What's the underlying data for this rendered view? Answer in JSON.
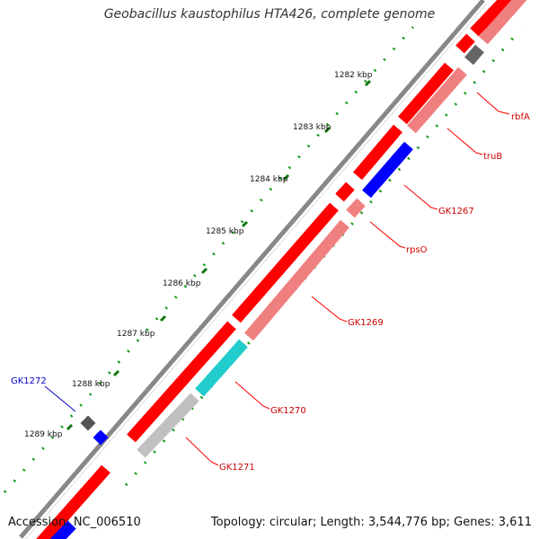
{
  "header": {
    "title": "Geobacillus kaustophilus HTA426, complete genome"
  },
  "footer": {
    "accession": "Accession: NC_006510",
    "stats": "Topology: circular; Length: 3,544,776 bp; Genes: 3,611"
  },
  "ticks": [
    "1282 kbp",
    "1283 kbp",
    "1284 kbp",
    "1285 kbp",
    "1286 kbp",
    "1287 kbp",
    "1288 kbp",
    "1289 kbp"
  ],
  "genes": [
    {
      "name": "rbfA",
      "color": "#cc0000"
    },
    {
      "name": "truB",
      "color": "#cc0000"
    },
    {
      "name": "GK1267",
      "color": "#cc0000"
    },
    {
      "name": "rpsO",
      "color": "#cc0000"
    },
    {
      "name": "GK1269",
      "color": "#cc0000"
    },
    {
      "name": "GK1270",
      "color": "#cc0000"
    },
    {
      "name": "GK1271",
      "color": "#cc0000"
    },
    {
      "name": "GK1272",
      "color": "#0000cc"
    }
  ],
  "colors": {
    "cds": "#ff0000",
    "cds_light": "#f08080",
    "rna": "#6e6e6e",
    "blue": "#0000ff",
    "cyan": "#22cccc",
    "grey": "#c0c0c0",
    "backbone": "#888888",
    "tick": "#007700"
  }
}
